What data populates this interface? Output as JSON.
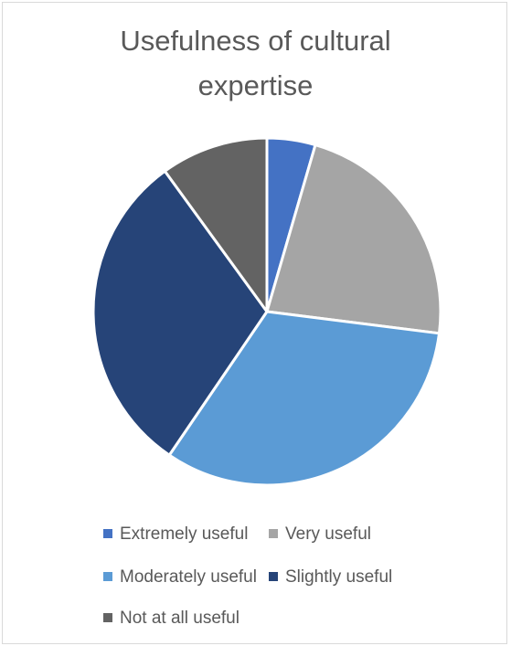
{
  "chart_data": {
    "type": "pie",
    "title": "Usefulness of cultural expertise",
    "title_lines": [
      "Usefulness of cultural",
      "expertise"
    ],
    "categories": [
      "Extremely useful",
      "Very useful",
      "Moderately useful",
      "Slightly useful",
      "Not at all useful"
    ],
    "values": [
      4.5,
      22.5,
      32.5,
      30.5,
      10.0
    ],
    "unit": "percent",
    "colors": [
      "#4472c4",
      "#a5a5a5",
      "#5b9bd5",
      "#264478",
      "#636363"
    ],
    "legend_position": "bottom",
    "start_angle_degrees": 0,
    "direction": "clockwise"
  }
}
